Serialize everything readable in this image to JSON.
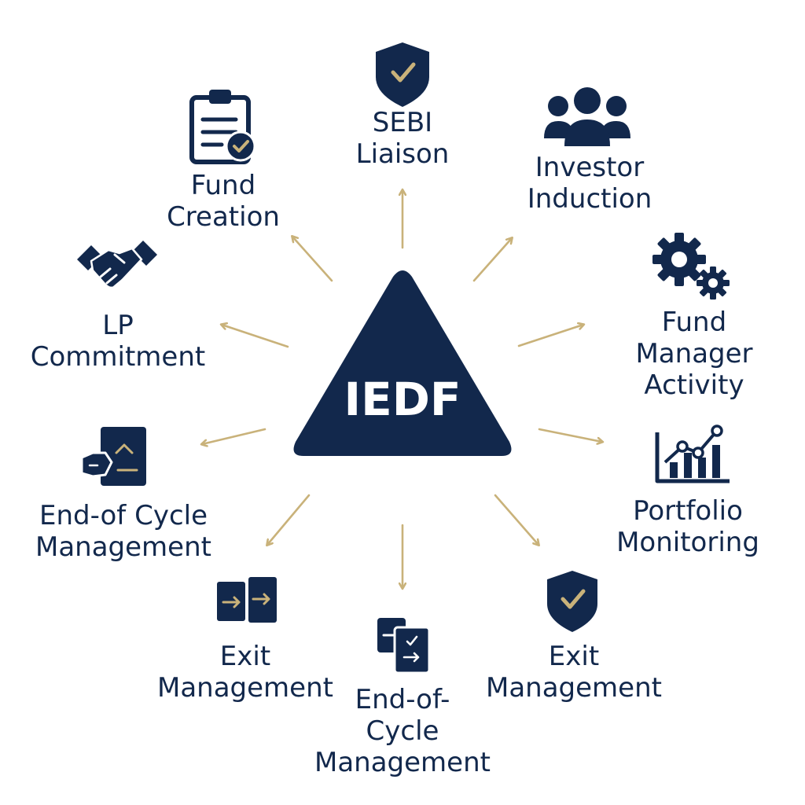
{
  "diagram": {
    "center_label": "IEDF",
    "colors": {
      "navy": "#12284c",
      "gold": "#c9b27a",
      "background": "#ffffff"
    },
    "nodes": [
      {
        "id": "sebi",
        "label": "SEBI\nLiaison",
        "icon": "shield-check-icon"
      },
      {
        "id": "investor",
        "label": "Investor\nInduction",
        "icon": "people-group-icon"
      },
      {
        "id": "fundmgr",
        "label": "Fund\nManager\nActivity",
        "icon": "gears-icon"
      },
      {
        "id": "portfolio",
        "label": "Portfolio\nMonitoring",
        "icon": "growth-chart-icon"
      },
      {
        "id": "exit-right",
        "label": "Exit\nManagement",
        "icon": "shield-check-icon"
      },
      {
        "id": "eoc-bottom",
        "label": "End-of-\nCycle\nManagement",
        "icon": "documents-icon"
      },
      {
        "id": "exit-left",
        "label": "Exit\nManagement",
        "icon": "transfer-doors-icon"
      },
      {
        "id": "eoc-left",
        "label": "End-of Cycle\nManagement",
        "icon": "exit-door-icon"
      },
      {
        "id": "lp",
        "label": "LP\nCommitment",
        "icon": "handshake-icon"
      },
      {
        "id": "fund",
        "label": "Fund\nCreation",
        "icon": "clipboard-check-icon"
      }
    ]
  }
}
